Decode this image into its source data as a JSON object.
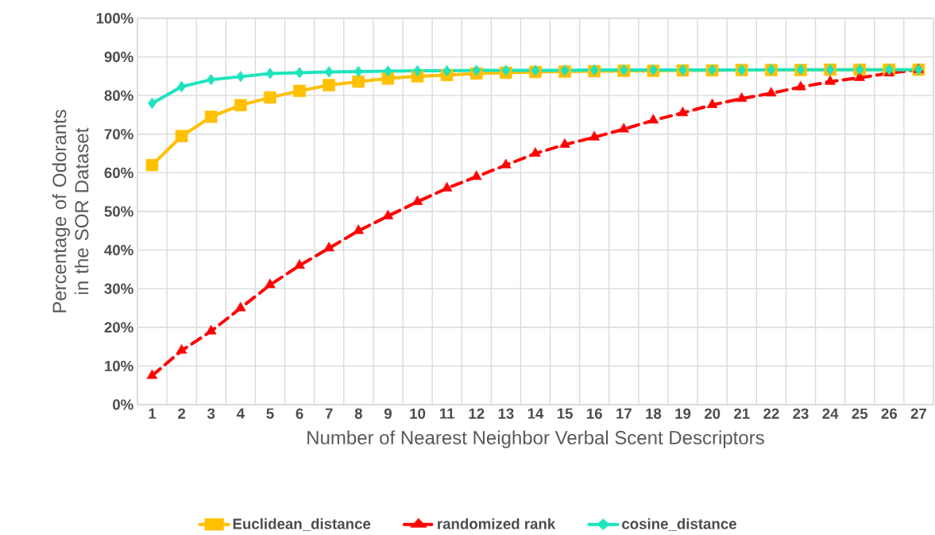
{
  "chart_data": {
    "type": "line",
    "xlabel": "Number of Nearest Neighbor Verbal Scent Descriptors",
    "ylabel": "Percentage of Odorants in the SOR Dataset",
    "categories": [
      "1",
      "2",
      "3",
      "4",
      "5",
      "6",
      "7",
      "8",
      "9",
      "10",
      "11",
      "12",
      "13",
      "14",
      "15",
      "16",
      "17",
      "18",
      "19",
      "20",
      "21",
      "22",
      "23",
      "24",
      "25",
      "26",
      "27"
    ],
    "ylim": [
      0,
      100
    ],
    "yticks": [
      {
        "value": 0,
        "label": "0%"
      },
      {
        "value": 10,
        "label": "10%"
      },
      {
        "value": 20,
        "label": "20%"
      },
      {
        "value": 30,
        "label": "30%"
      },
      {
        "value": 40,
        "label": "40%"
      },
      {
        "value": 50,
        "label": "50%"
      },
      {
        "value": 60,
        "label": "60%"
      },
      {
        "value": 70,
        "label": "70%"
      },
      {
        "value": 80,
        "label": "80%"
      },
      {
        "value": 90,
        "label": "90%"
      },
      {
        "value": 100,
        "label": "100%"
      }
    ],
    "grid": true,
    "legend": "bottom",
    "series": [
      {
        "name": "Euclidean_distance",
        "color": "#ffc000",
        "marker": "square",
        "line_style": "solid",
        "values": [
          62,
          69.5,
          74.5,
          77.5,
          79.5,
          81.2,
          82.7,
          83.6,
          84.4,
          85,
          85.3,
          85.7,
          85.9,
          86.1,
          86.2,
          86.3,
          86.4,
          86.4,
          86.5,
          86.5,
          86.6,
          86.6,
          86.6,
          86.7,
          86.7,
          86.7,
          86.7
        ]
      },
      {
        "name": "randomized rank",
        "color": "#ff0000",
        "marker": "triangle",
        "line_style": "dashed",
        "values": [
          7.5,
          14,
          19,
          25,
          31,
          36,
          40.5,
          45,
          48.8,
          52.5,
          56,
          59,
          62,
          65,
          67.3,
          69.2,
          71.3,
          73.6,
          75.5,
          77.6,
          79.2,
          80.6,
          82.2,
          83.6,
          84.6,
          85.8,
          86.7
        ]
      },
      {
        "name": "cosine_distance",
        "color": "#1de4bd",
        "marker": "diamond",
        "line_style": "solid",
        "values": [
          78,
          82.3,
          84.1,
          84.9,
          85.7,
          85.9,
          86.1,
          86.2,
          86.3,
          86.4,
          86.4,
          86.5,
          86.5,
          86.5,
          86.5,
          86.6,
          86.6,
          86.6,
          86.6,
          86.6,
          86.6,
          86.7,
          86.7,
          86.7,
          86.7,
          86.7,
          86.7
        ]
      }
    ]
  }
}
